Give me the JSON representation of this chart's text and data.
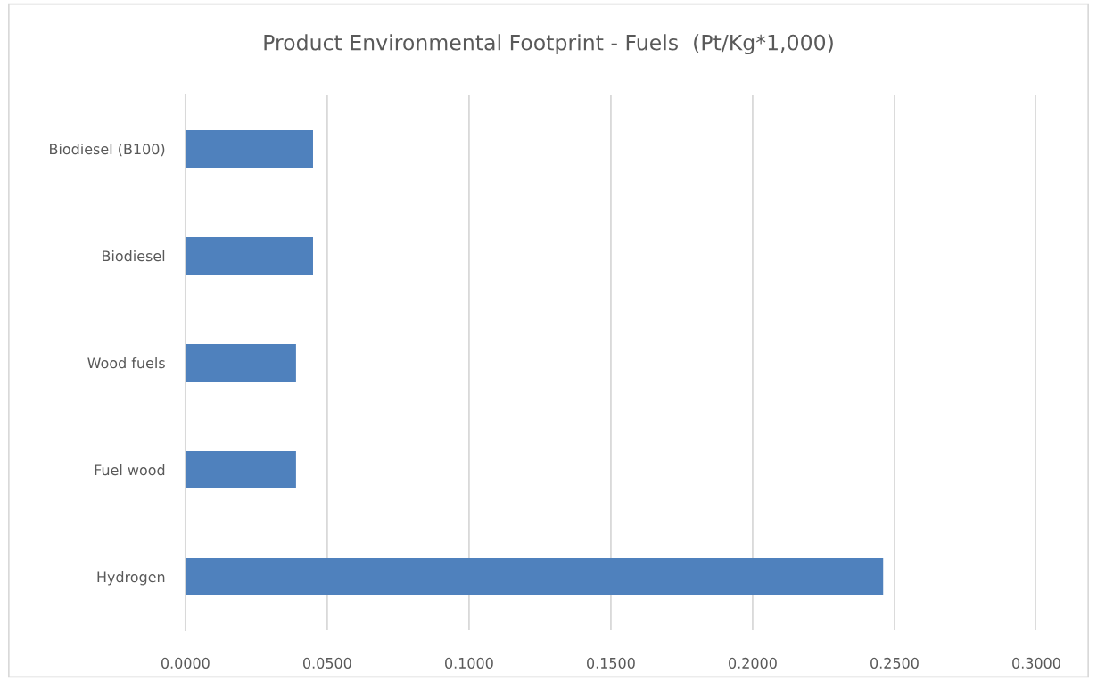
{
  "chart_data": {
    "type": "bar",
    "orientation": "horizontal",
    "title": "Product Environmental Footprint - Fuels  (Pt/Kg*1,000)",
    "categories": [
      "Biodiesel (B100)",
      "Biodiesel",
      "Wood fuels",
      "Fuel wood",
      "Hydrogen"
    ],
    "values": [
      0.045,
      0.045,
      0.039,
      0.039,
      0.246
    ],
    "color": "#4f81bd",
    "xlim": [
      0,
      0.3
    ],
    "xticks": [
      {
        "value": 0,
        "label": "0.0000"
      },
      {
        "value": 0.05,
        "label": "0.0500"
      },
      {
        "value": 0.1,
        "label": "0.1000"
      },
      {
        "value": 0.15,
        "label": "0.1500"
      },
      {
        "value": 0.2,
        "label": "0.2000"
      },
      {
        "value": 0.25,
        "label": "0.2500"
      },
      {
        "value": 0.3,
        "label": "0.3000"
      }
    ],
    "grid": "x",
    "legend": false
  }
}
